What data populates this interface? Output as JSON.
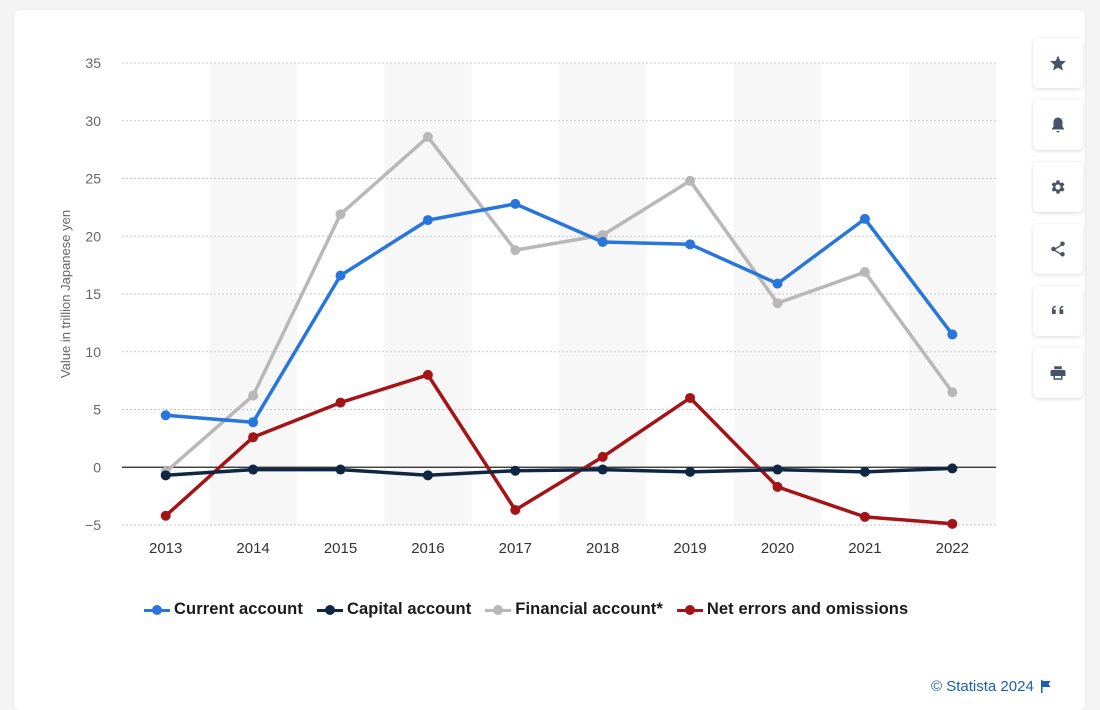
{
  "chart_data": {
    "type": "line",
    "ylabel": "Value in trillion Japanese yen",
    "xlabel": "",
    "x": [
      "2013",
      "2014",
      "2015",
      "2016",
      "2017",
      "2018",
      "2019",
      "2020",
      "2021",
      "2022"
    ],
    "ylim": [
      -5,
      35
    ],
    "yticks": [
      35,
      30,
      25,
      20,
      15,
      10,
      5,
      0,
      -5
    ],
    "ytick_labels": [
      "35",
      "30",
      "25",
      "20",
      "15",
      "10",
      "5",
      "0",
      "−5"
    ],
    "grid": true,
    "legend_position": "bottom",
    "series": [
      {
        "name": "Current account",
        "color": "#2876dd",
        "values": [
          4.5,
          3.9,
          16.6,
          21.4,
          22.8,
          19.5,
          19.3,
          15.9,
          21.5,
          11.5
        ]
      },
      {
        "name": "Capital account",
        "color": "#0f2742",
        "values": [
          -0.7,
          -0.2,
          -0.2,
          -0.7,
          -0.3,
          -0.2,
          -0.4,
          -0.2,
          -0.4,
          -0.1
        ]
      },
      {
        "name": "Financial account*",
        "color": "#b8b8b8",
        "values": [
          -0.4,
          6.2,
          21.9,
          28.6,
          18.8,
          20.1,
          24.8,
          14.2,
          16.9,
          6.5
        ]
      },
      {
        "name": "Net errors and omissions",
        "color": "#a41417",
        "values": [
          -4.2,
          2.6,
          5.6,
          8.0,
          -3.7,
          0.9,
          6.0,
          -1.7,
          -4.3,
          -4.9
        ]
      }
    ]
  },
  "sidebar": {
    "buttons": [
      "star-icon",
      "bell-icon",
      "gear-icon",
      "share-icon",
      "quote-icon",
      "print-icon"
    ]
  },
  "footer": {
    "credit": "© Statista 2024"
  }
}
